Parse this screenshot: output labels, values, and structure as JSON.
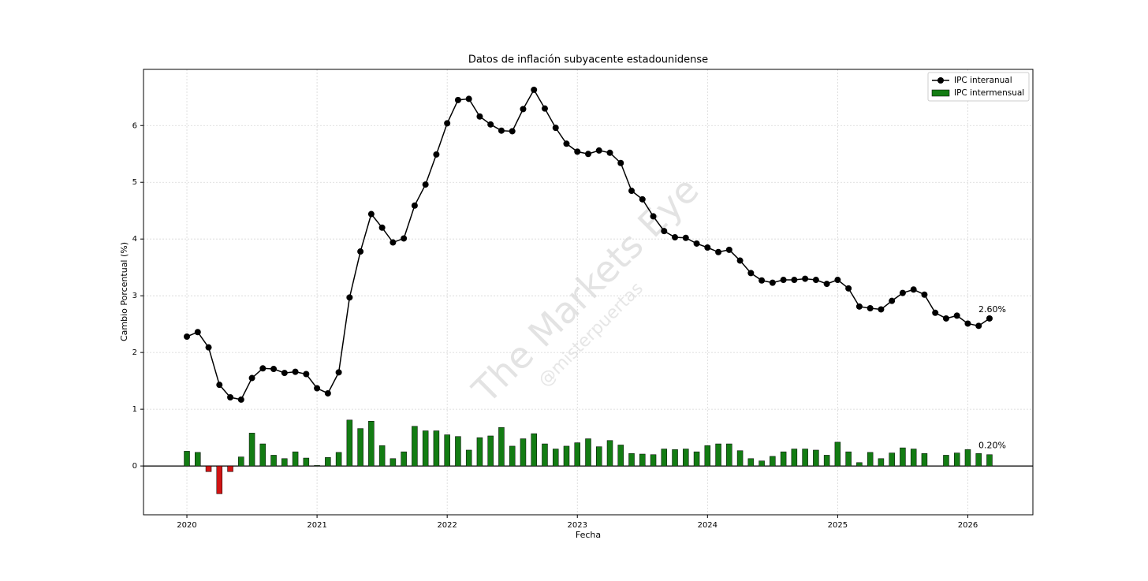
{
  "chart_data": {
    "type": "line_bar",
    "title": "Datos de inflación subyacente estadounidense",
    "xlabel": "Fecha",
    "ylabel": "Cambio Porcentual (%)",
    "watermark": "The Markets Eye",
    "watermark_sub": "@misterpuertas",
    "x": [
      "2020-01",
      "2020-02",
      "2020-03",
      "2020-04",
      "2020-05",
      "2020-06",
      "2020-07",
      "2020-08",
      "2020-09",
      "2020-10",
      "2020-11",
      "2020-12",
      "2021-01",
      "2021-02",
      "2021-03",
      "2021-04",
      "2021-05",
      "2021-06",
      "2021-07",
      "2021-08",
      "2021-09",
      "2021-10",
      "2021-11",
      "2021-12",
      "2022-01",
      "2022-02",
      "2022-03",
      "2022-04",
      "2022-05",
      "2022-06",
      "2022-07",
      "2022-08",
      "2022-09",
      "2022-10",
      "2022-11",
      "2022-12",
      "2023-01",
      "2023-02",
      "2023-03",
      "2023-04",
      "2023-05",
      "2023-06",
      "2023-07",
      "2023-08",
      "2023-09",
      "2023-10",
      "2023-11",
      "2023-12",
      "2024-01",
      "2024-02",
      "2024-03",
      "2024-04",
      "2024-05",
      "2024-06",
      "2024-07",
      "2024-08",
      "2024-09",
      "2024-10",
      "2024-11",
      "2024-12",
      "2025-01",
      "2025-02",
      "2025-03",
      "2025-04",
      "2025-05",
      "2025-06",
      "2025-07",
      "2025-08",
      "2025-09",
      "2025-10",
      "2025-11",
      "2025-12",
      "2026-01",
      "2026-02",
      "2026-03"
    ],
    "series": [
      {
        "name": "IPC interanual",
        "kind": "line",
        "color": "#000000",
        "values": [
          2.28,
          2.36,
          2.09,
          1.43,
          1.21,
          1.17,
          1.55,
          1.72,
          1.71,
          1.64,
          1.66,
          1.62,
          1.37,
          1.28,
          1.65,
          2.97,
          3.78,
          4.44,
          4.2,
          3.94,
          4.01,
          4.59,
          4.96,
          5.49,
          6.04,
          6.45,
          6.47,
          6.16,
          6.02,
          5.91,
          5.9,
          6.29,
          6.63,
          6.3,
          5.96,
          5.68,
          5.54,
          5.5,
          5.56,
          5.52,
          5.34,
          4.85,
          4.7,
          4.4,
          4.14,
          4.03,
          4.02,
          3.92,
          3.85,
          3.77,
          3.81,
          3.62,
          3.4,
          3.27,
          3.23,
          3.28,
          3.28,
          3.3,
          3.28,
          3.21,
          3.28,
          3.13,
          2.81,
          2.78,
          2.76,
          2.91,
          3.05,
          3.11,
          3.02,
          2.7,
          2.6,
          2.65,
          2.51,
          2.47,
          2.6
        ],
        "value_labels": [
          null,
          null,
          null,
          null,
          null,
          null,
          null,
          null,
          null,
          null,
          null,
          null,
          null,
          null,
          null,
          null,
          null,
          null,
          null,
          null,
          null,
          null,
          null,
          null,
          null,
          null,
          null,
          null,
          null,
          null,
          null,
          null,
          null,
          null,
          null,
          null,
          null,
          null,
          null,
          null,
          null,
          null,
          null,
          null,
          null,
          null,
          null,
          null,
          null,
          null,
          null,
          null,
          null,
          null,
          null,
          null,
          null,
          null,
          null,
          null,
          null,
          null,
          null,
          null,
          null,
          null,
          null,
          null,
          null,
          null,
          null,
          null,
          null,
          null,
          "2.60%"
        ]
      },
      {
        "name": "IPC intermensual",
        "kind": "bar",
        "color": "#137c13",
        "negative_color": "#d11414",
        "values": [
          0.26,
          0.24,
          -0.1,
          -0.49,
          -0.1,
          0.16,
          0.58,
          0.39,
          0.19,
          0.13,
          0.25,
          0.14,
          0.01,
          0.15,
          0.24,
          0.81,
          0.66,
          0.79,
          0.36,
          0.13,
          0.25,
          0.7,
          0.62,
          0.62,
          0.55,
          0.52,
          0.28,
          0.5,
          0.53,
          0.68,
          0.35,
          0.48,
          0.57,
          0.39,
          0.3,
          0.35,
          0.41,
          0.48,
          0.34,
          0.45,
          0.37,
          0.22,
          0.21,
          0.2,
          0.3,
          0.29,
          0.3,
          0.25,
          0.36,
          0.39,
          0.39,
          0.27,
          0.13,
          0.09,
          0.17,
          0.25,
          0.3,
          0.3,
          0.28,
          0.19,
          0.42,
          0.25,
          0.06,
          0.24,
          0.13,
          0.23,
          0.32,
          0.3,
          0.22,
          null,
          0.19,
          0.23,
          0.29,
          0.22,
          0.2
        ],
        "value_labels": [
          null,
          null,
          null,
          null,
          null,
          null,
          null,
          null,
          null,
          null,
          null,
          null,
          null,
          null,
          null,
          null,
          null,
          null,
          null,
          null,
          null,
          null,
          null,
          null,
          null,
          null,
          null,
          null,
          null,
          null,
          null,
          null,
          null,
          null,
          null,
          null,
          null,
          null,
          null,
          null,
          null,
          null,
          null,
          null,
          null,
          null,
          null,
          null,
          null,
          null,
          null,
          null,
          null,
          null,
          null,
          null,
          null,
          null,
          null,
          null,
          null,
          null,
          null,
          null,
          null,
          null,
          null,
          null,
          null,
          null,
          null,
          null,
          null,
          null,
          "0.20%"
        ]
      }
    ],
    "xlim": [
      "2019-09",
      "2026-07"
    ],
    "xticks": [
      2020,
      2021,
      2022,
      2023,
      2024,
      2025,
      2026
    ],
    "ylim": [
      -0.86,
      6.99
    ],
    "yticks": [
      0,
      1,
      2,
      3,
      4,
      5,
      6
    ],
    "grid": true,
    "legend": "upper-right"
  }
}
